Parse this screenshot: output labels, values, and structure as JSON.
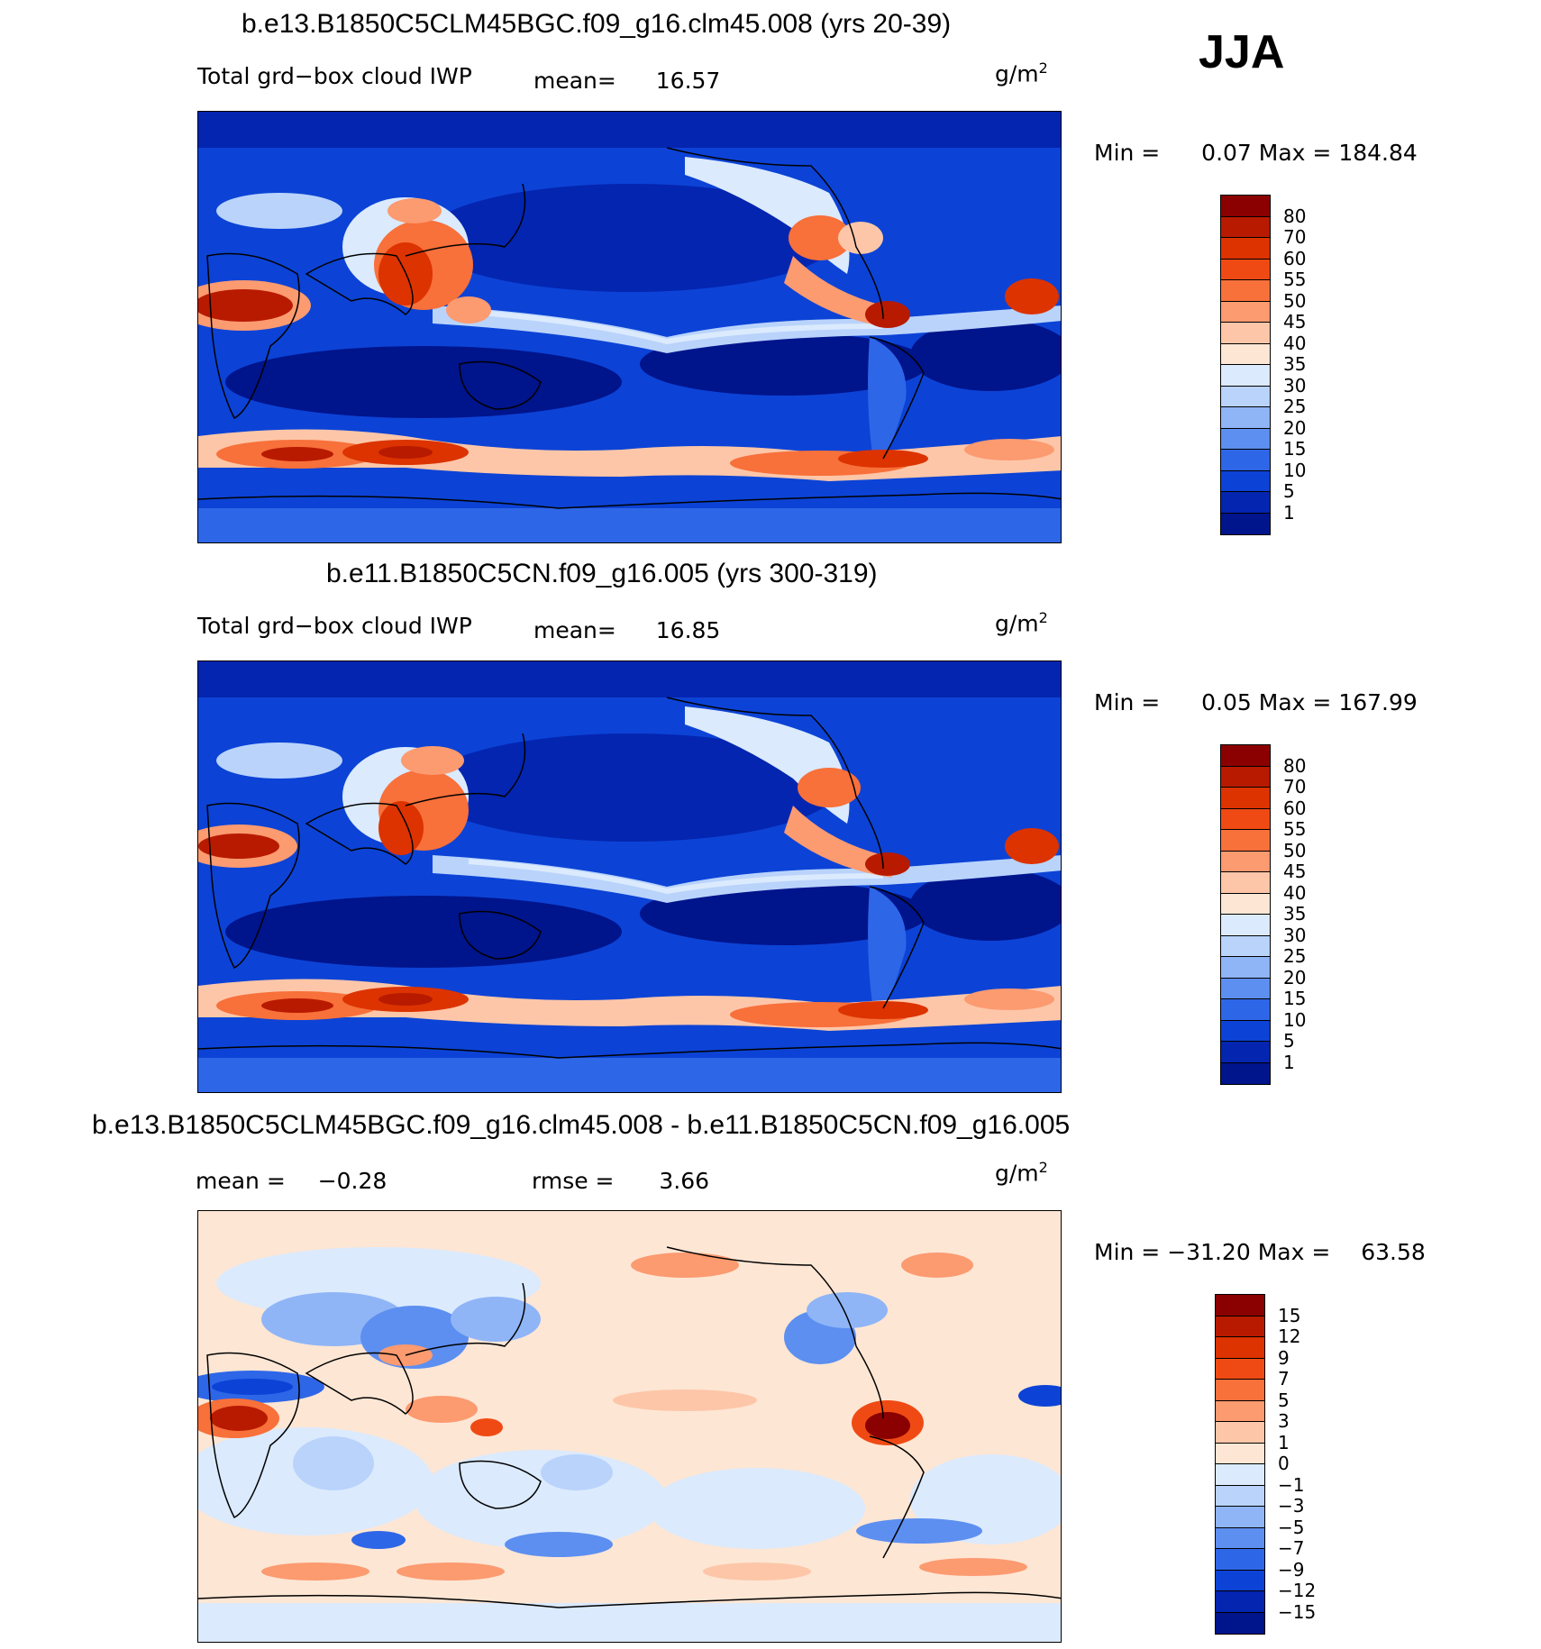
{
  "season": "JJA",
  "units": {
    "base": "g/m",
    "exp": "2"
  },
  "panels": [
    {
      "title": "b.e13.B1850C5CLM45BGC.f09_g16.clm45.008 (yrs 20-39)",
      "variable": "Total grd−box cloud IWP",
      "mean_label": "mean=",
      "mean": "16.57",
      "min_label": "Min =",
      "min": "0.07",
      "max_label": "Max =",
      "max": "184.84",
      "colorbar": {
        "labels": [
          "80",
          "70",
          "60",
          "55",
          "50",
          "45",
          "40",
          "35",
          "30",
          "25",
          "20",
          "15",
          "10",
          "5",
          "1"
        ],
        "colors": [
          "#8b0000",
          "#b81a00",
          "#dc3300",
          "#f04a14",
          "#f8703a",
          "#fc9a70",
          "#fdc6a8",
          "#fde6d4",
          "#dbeafd",
          "#b9d3fb",
          "#8fb5f7",
          "#5c8ff0",
          "#2e66e8",
          "#0c43d6",
          "#0425b0",
          "#00148c"
        ]
      }
    },
    {
      "title": "b.e11.B1850C5CN.f09_g16.005 (yrs 300-319)",
      "variable": "Total grd−box cloud IWP",
      "mean_label": "mean=",
      "mean": "16.85",
      "min_label": "Min =",
      "min": "0.05",
      "max_label": "Max =",
      "max": "167.99",
      "colorbar": {
        "labels": [
          "80",
          "70",
          "60",
          "55",
          "50",
          "45",
          "40",
          "35",
          "30",
          "25",
          "20",
          "15",
          "10",
          "5",
          "1"
        ],
        "colors": [
          "#8b0000",
          "#b81a00",
          "#dc3300",
          "#f04a14",
          "#f8703a",
          "#fc9a70",
          "#fdc6a8",
          "#fde6d4",
          "#dbeafd",
          "#b9d3fb",
          "#8fb5f7",
          "#5c8ff0",
          "#2e66e8",
          "#0c43d6",
          "#0425b0",
          "#00148c"
        ]
      }
    },
    {
      "title": "b.e13.B1850C5CLM45BGC.f09_g16.clm45.008 - b.e11.B1850C5CN.f09_g16.005",
      "mean_label": "mean =",
      "mean": "−0.28",
      "rmse_label": "rmse =",
      "rmse": "3.66",
      "min_label": "Min =",
      "min": "−31.20",
      "max_label": "Max =",
      "max": "63.58",
      "colorbar": {
        "labels": [
          "15",
          "12",
          "9",
          "7",
          "5",
          "3",
          "1",
          "0",
          "−1",
          "−3",
          "−5",
          "−7",
          "−9",
          "−12",
          "−15"
        ],
        "colors": [
          "#8b0000",
          "#b81a00",
          "#dc3300",
          "#f04a14",
          "#f8703a",
          "#fc9a70",
          "#fdc6a8",
          "#fde6d4",
          "#dbeafd",
          "#b9d3fb",
          "#8fb5f7",
          "#5c8ff0",
          "#2e66e8",
          "#0c43d6",
          "#0425b0",
          "#00148c"
        ]
      }
    }
  ]
}
